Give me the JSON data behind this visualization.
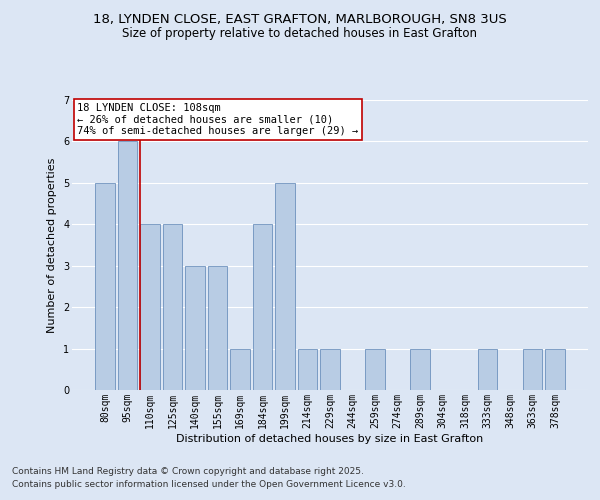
{
  "title1": "18, LYNDEN CLOSE, EAST GRAFTON, MARLBOROUGH, SN8 3US",
  "title2": "Size of property relative to detached houses in East Grafton",
  "xlabel": "Distribution of detached houses by size in East Grafton",
  "ylabel": "Number of detached properties",
  "categories": [
    "80sqm",
    "95sqm",
    "110sqm",
    "125sqm",
    "140sqm",
    "155sqm",
    "169sqm",
    "184sqm",
    "199sqm",
    "214sqm",
    "229sqm",
    "244sqm",
    "259sqm",
    "274sqm",
    "289sqm",
    "304sqm",
    "318sqm",
    "333sqm",
    "348sqm",
    "363sqm",
    "378sqm"
  ],
  "values": [
    5,
    6,
    4,
    4,
    3,
    3,
    1,
    4,
    5,
    1,
    1,
    0,
    1,
    0,
    1,
    0,
    0,
    1,
    0,
    1,
    1
  ],
  "bar_color": "#b8cce4",
  "bar_edge_color": "#5a82b4",
  "highlight_index": 2,
  "highlight_color": "#c00000",
  "ylim": [
    0,
    7
  ],
  "yticks": [
    0,
    1,
    2,
    3,
    4,
    5,
    6,
    7
  ],
  "annotation_title": "18 LYNDEN CLOSE: 108sqm",
  "annotation_line1": "← 26% of detached houses are smaller (10)",
  "annotation_line2": "74% of semi-detached houses are larger (29) →",
  "annotation_box_color": "#c00000",
  "footer1": "Contains HM Land Registry data © Crown copyright and database right 2025.",
  "footer2": "Contains public sector information licensed under the Open Government Licence v3.0.",
  "bg_color": "#dce6f4",
  "plot_bg_color": "#dce6f4",
  "grid_color": "#ffffff",
  "title_fontsize": 9.5,
  "subtitle_fontsize": 8.5,
  "axis_label_fontsize": 8,
  "tick_fontsize": 7,
  "footer_fontsize": 6.5,
  "annotation_fontsize": 7.5
}
